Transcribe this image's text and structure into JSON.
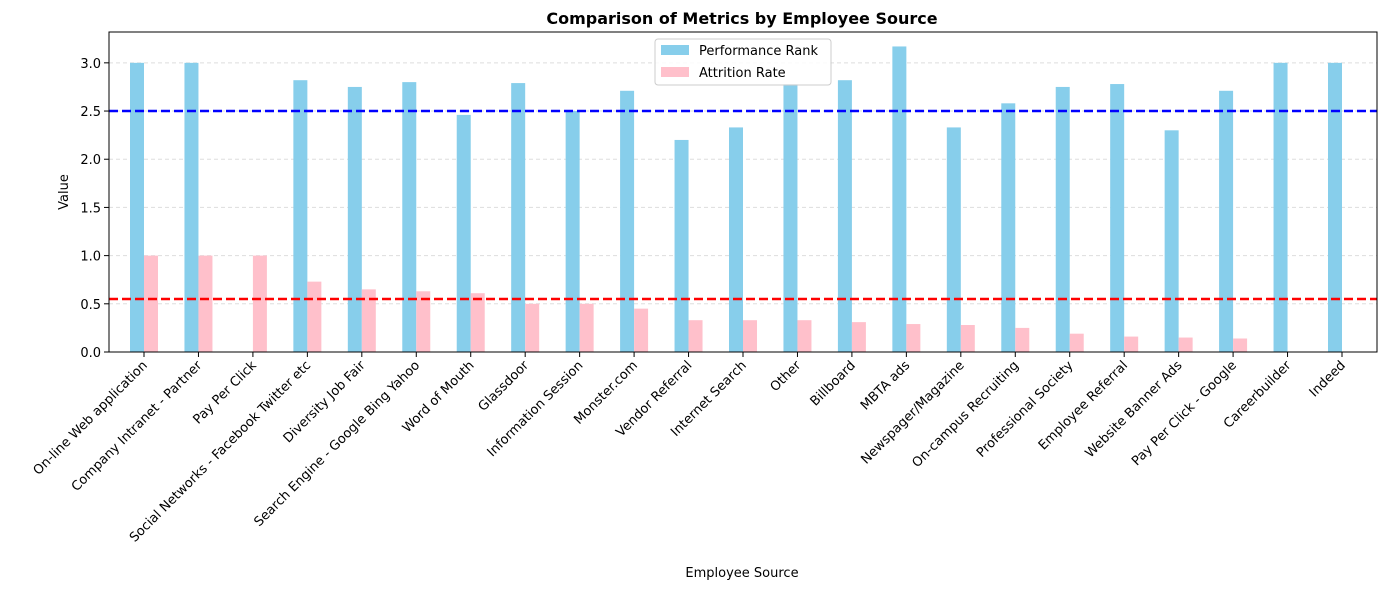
{
  "chart_data": {
    "type": "bar",
    "title": "Comparison of Metrics by Employee Source",
    "xlabel": "Employee Source",
    "ylabel": "Value",
    "ylim": [
      0,
      3.32
    ],
    "yticks": [
      "0.0",
      "0.5",
      "1.0",
      "1.5",
      "2.0",
      "2.5",
      "3.0"
    ],
    "grid": "y-dashed",
    "legend_position": "top-center",
    "categories": [
      "On-line Web application",
      "Company Intranet - Partner",
      "Pay Per Click",
      "Social Networks - Facebook Twitter etc",
      "Diversity Job Fair",
      "Search Engine - Google Bing Yahoo",
      "Word of Mouth",
      "Glassdoor",
      "Information Session",
      "Monster.com",
      "Vendor Referral",
      "Internet Search",
      "Other",
      "Billboard",
      "MBTA ads",
      "Newspager/Magazine",
      "On-campus Recruiting",
      "Professional Society",
      "Employee Referral",
      "Website Banner Ads",
      "Pay Per Click - Google",
      "Careerbuilder",
      "Indeed"
    ],
    "series": [
      {
        "name": "Performance Rank",
        "color": "#87ceeb",
        "values": [
          3.0,
          3.0,
          0,
          2.82,
          2.75,
          2.8,
          2.46,
          2.79,
          2.5,
          2.71,
          2.2,
          2.33,
          2.78,
          2.82,
          3.17,
          2.33,
          2.58,
          2.75,
          2.78,
          2.3,
          2.71,
          3.0,
          3.0
        ]
      },
      {
        "name": "Attrition Rate",
        "color": "#ffc0cb",
        "values": [
          1.0,
          1.0,
          1.0,
          0.73,
          0.65,
          0.63,
          0.61,
          0.5,
          0.5,
          0.45,
          0.33,
          0.33,
          0.33,
          0.31,
          0.29,
          0.28,
          0.25,
          0.19,
          0.16,
          0.15,
          0.14,
          0,
          0
        ]
      }
    ],
    "reference_lines": [
      {
        "y": 2.5,
        "color": "#0000ff",
        "style": "dashed"
      },
      {
        "y": 0.55,
        "color": "#ff0000",
        "style": "dashed"
      }
    ]
  }
}
